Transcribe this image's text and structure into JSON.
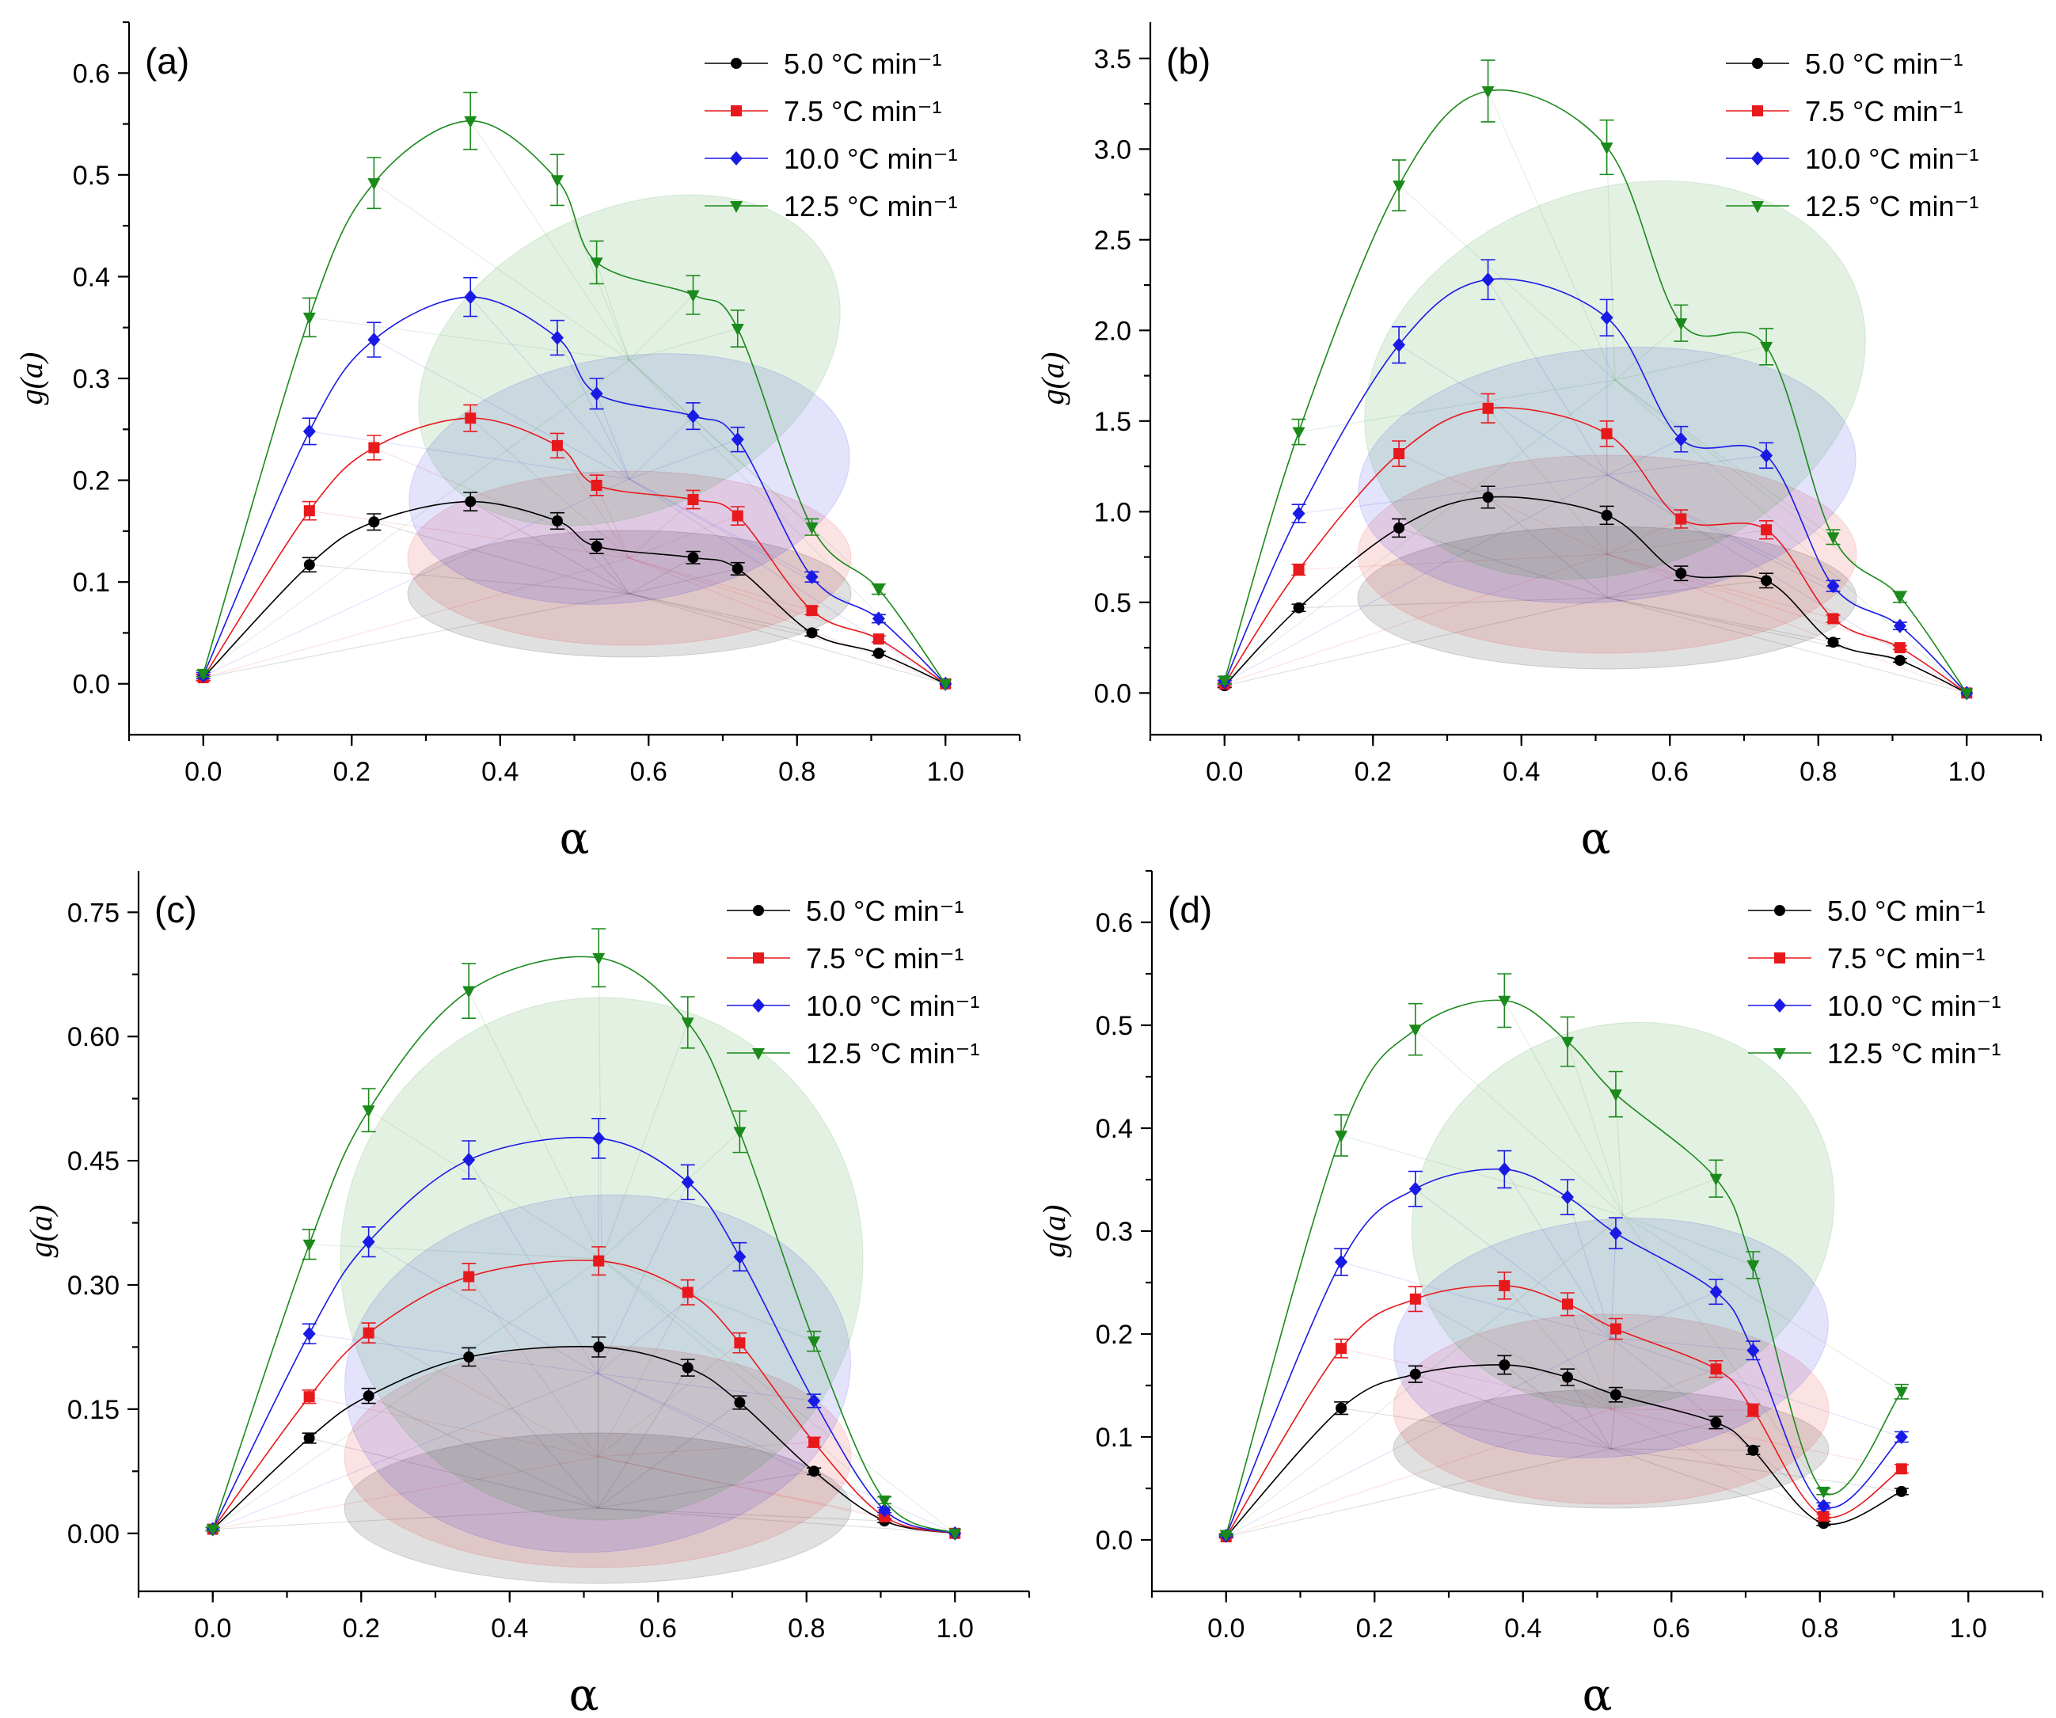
{
  "chart_data": [
    {
      "type": "line",
      "panel_label": "(a)",
      "xlabel": "α",
      "ylabel": "g(a)",
      "xlim": [
        -0.1,
        1.1
      ],
      "ylim": [
        -0.05,
        0.65
      ],
      "x_ticks": [
        "0.0",
        "0.2",
        "0.4",
        "0.6",
        "0.8",
        "1.0"
      ],
      "y_ticks": [
        "0.0",
        "0.1",
        "0.2",
        "0.3",
        "0.4",
        "0.5",
        "0.6"
      ],
      "y_tick_values": [
        0,
        0.1,
        0.2,
        0.3,
        0.4,
        0.5,
        0.6
      ],
      "legend_position": "top-right",
      "series": [
        {
          "name": "5.0 °C min⁻¹",
          "color": "#000000",
          "marker": "circle",
          "x": [
            0,
            0.143,
            0.23,
            0.36,
            0.477,
            0.53,
            0.66,
            0.72,
            0.82,
            0.91,
            1.0
          ],
          "values": [
            0.006,
            0.117,
            0.159,
            0.179,
            0.16,
            0.135,
            0.124,
            0.113,
            0.05,
            0.03,
            0.0
          ],
          "err": [
            0.003,
            0.007,
            0.008,
            0.009,
            0.008,
            0.007,
            0.006,
            0.006,
            0.003,
            0.002,
            0.0
          ]
        },
        {
          "name": "7.5 °C min⁻¹",
          "color": "#e8191c",
          "marker": "square",
          "x": [
            0,
            0.143,
            0.23,
            0.36,
            0.477,
            0.53,
            0.66,
            0.72,
            0.82,
            0.91,
            1.0
          ],
          "values": [
            0.006,
            0.17,
            0.232,
            0.261,
            0.234,
            0.195,
            0.181,
            0.165,
            0.072,
            0.044,
            0.0
          ],
          "err": [
            0.003,
            0.009,
            0.012,
            0.013,
            0.012,
            0.01,
            0.009,
            0.009,
            0.004,
            0.003,
            0.0
          ]
        },
        {
          "name": "10.0 °C min⁻¹",
          "color": "#1a1ae6",
          "marker": "diamond",
          "x": [
            0,
            0.143,
            0.23,
            0.36,
            0.477,
            0.53,
            0.66,
            0.72,
            0.82,
            0.91,
            1.0
          ],
          "values": [
            0.008,
            0.248,
            0.338,
            0.38,
            0.34,
            0.285,
            0.263,
            0.24,
            0.105,
            0.064,
            0.0
          ],
          "err": [
            0.003,
            0.013,
            0.017,
            0.019,
            0.017,
            0.015,
            0.013,
            0.012,
            0.005,
            0.004,
            0.0
          ]
        },
        {
          "name": "12.5 °C min⁻¹",
          "color": "#1a8a1a",
          "marker": "triangle-down",
          "x": [
            0,
            0.143,
            0.23,
            0.36,
            0.477,
            0.53,
            0.66,
            0.72,
            0.82,
            0.91,
            1.0
          ],
          "values": [
            0.01,
            0.36,
            0.492,
            0.553,
            0.495,
            0.414,
            0.382,
            0.349,
            0.154,
            0.093,
            0.0
          ],
          "err": [
            0.003,
            0.019,
            0.025,
            0.028,
            0.025,
            0.021,
            0.019,
            0.018,
            0.008,
            0.005,
            0.0
          ]
        }
      ]
    },
    {
      "type": "line",
      "panel_label": "(b)",
      "xlabel": "α",
      "ylabel": "g(a)",
      "xlim": [
        -0.1,
        1.1
      ],
      "ylim": [
        -0.23,
        3.7
      ],
      "x_ticks": [
        "0.0",
        "0.2",
        "0.4",
        "0.6",
        "0.8",
        "1.0"
      ],
      "y_ticks": [
        "0.0",
        "0.5",
        "1.0",
        "1.5",
        "2.0",
        "2.5",
        "3.0",
        "3.5"
      ],
      "y_tick_values": [
        0,
        0.5,
        1.0,
        1.5,
        2.0,
        2.5,
        3.0,
        3.5
      ],
      "legend_position": "top-right",
      "series": [
        {
          "name": "5.0 °C min⁻¹",
          "color": "#000000",
          "marker": "circle",
          "x": [
            0,
            0.1,
            0.235,
            0.355,
            0.515,
            0.615,
            0.73,
            0.82,
            0.91,
            1.0
          ],
          "values": [
            0.04,
            0.47,
            0.91,
            1.08,
            0.98,
            0.66,
            0.62,
            0.28,
            0.18,
            0.0
          ],
          "err": [
            0.01,
            0.02,
            0.05,
            0.06,
            0.05,
            0.04,
            0.04,
            0.02,
            0.01,
            0.0
          ]
        },
        {
          "name": "7.5 °C min⁻¹",
          "color": "#e8191c",
          "marker": "square",
          "x": [
            0,
            0.1,
            0.235,
            0.355,
            0.515,
            0.615,
            0.73,
            0.82,
            0.91,
            1.0
          ],
          "values": [
            0.05,
            0.68,
            1.32,
            1.57,
            1.43,
            0.96,
            0.9,
            0.41,
            0.25,
            0.0
          ],
          "err": [
            0.01,
            0.03,
            0.07,
            0.08,
            0.07,
            0.05,
            0.05,
            0.02,
            0.01,
            0.0
          ]
        },
        {
          "name": "10.0 °C min⁻¹",
          "color": "#1a1ae6",
          "marker": "diamond",
          "x": [
            0,
            0.1,
            0.235,
            0.355,
            0.515,
            0.615,
            0.73,
            0.82,
            0.91,
            1.0
          ],
          "values": [
            0.06,
            0.99,
            1.92,
            2.28,
            2.07,
            1.4,
            1.31,
            0.59,
            0.37,
            0.0
          ],
          "err": [
            0.01,
            0.05,
            0.1,
            0.11,
            0.1,
            0.07,
            0.07,
            0.03,
            0.02,
            0.0
          ]
        },
        {
          "name": "12.5 °C min⁻¹",
          "color": "#1a8a1a",
          "marker": "triangle-down",
          "x": [
            0,
            0.1,
            0.235,
            0.355,
            0.515,
            0.615,
            0.73,
            0.82,
            0.91,
            1.0
          ],
          "values": [
            0.07,
            1.44,
            2.8,
            3.32,
            3.01,
            2.04,
            1.91,
            0.86,
            0.53,
            0.0
          ],
          "err": [
            0.02,
            0.07,
            0.14,
            0.17,
            0.15,
            0.1,
            0.1,
            0.04,
            0.03,
            0.0
          ]
        }
      ]
    },
    {
      "type": "line",
      "panel_label": "(c)",
      "xlabel": "α",
      "ylabel": "g(a)",
      "xlim": [
        -0.1,
        1.1
      ],
      "ylim": [
        -0.07,
        0.8
      ],
      "x_ticks": [
        "0.0",
        "0.2",
        "0.4",
        "0.6",
        "0.8",
        "1.0"
      ],
      "y_ticks": [
        "0.00",
        "0.15",
        "0.30",
        "0.45",
        "0.60",
        "0.75"
      ],
      "y_tick_values": [
        0,
        0.15,
        0.3,
        0.45,
        0.6,
        0.75
      ],
      "legend_position": "top-right",
      "series": [
        {
          "name": "5.0 °C min⁻¹",
          "color": "#000000",
          "marker": "circle",
          "x": [
            0,
            0.13,
            0.21,
            0.345,
            0.52,
            0.64,
            0.71,
            0.81,
            0.905,
            1.0
          ],
          "values": [
            0.005,
            0.115,
            0.166,
            0.213,
            0.225,
            0.2,
            0.158,
            0.075,
            0.015,
            0.0
          ],
          "err": [
            0.002,
            0.006,
            0.009,
            0.011,
            0.012,
            0.01,
            0.008,
            0.004,
            0.002,
            0.0
          ]
        },
        {
          "name": "7.5 °C min⁻¹",
          "color": "#e8191c",
          "marker": "square",
          "x": [
            0,
            0.13,
            0.21,
            0.345,
            0.52,
            0.64,
            0.71,
            0.81,
            0.905,
            1.0
          ],
          "values": [
            0.005,
            0.165,
            0.242,
            0.31,
            0.329,
            0.291,
            0.23,
            0.11,
            0.02,
            0.0
          ],
          "err": [
            0.002,
            0.008,
            0.012,
            0.016,
            0.017,
            0.015,
            0.012,
            0.006,
            0.002,
            0.0
          ]
        },
        {
          "name": "10.0 °C min⁻¹",
          "color": "#1a1ae6",
          "marker": "diamond",
          "x": [
            0,
            0.13,
            0.21,
            0.345,
            0.52,
            0.64,
            0.71,
            0.81,
            0.905,
            1.0
          ],
          "values": [
            0.005,
            0.241,
            0.352,
            0.451,
            0.477,
            0.424,
            0.334,
            0.16,
            0.028,
            0.0
          ],
          "err": [
            0.002,
            0.012,
            0.018,
            0.023,
            0.024,
            0.021,
            0.017,
            0.008,
            0.003,
            0.0
          ]
        },
        {
          "name": "12.5 °C min⁻¹",
          "color": "#1a8a1a",
          "marker": "triangle-down",
          "x": [
            0,
            0.13,
            0.21,
            0.345,
            0.52,
            0.64,
            0.71,
            0.81,
            0.905,
            1.0
          ],
          "values": [
            0.005,
            0.349,
            0.511,
            0.655,
            0.695,
            0.617,
            0.485,
            0.232,
            0.04,
            0.0
          ],
          "err": [
            0.002,
            0.018,
            0.026,
            0.033,
            0.035,
            0.031,
            0.025,
            0.012,
            0.004,
            0.0
          ]
        }
      ]
    },
    {
      "type": "line",
      "panel_label": "(d)",
      "xlabel": "α",
      "ylabel": "g(a)",
      "xlim": [
        -0.1,
        1.1
      ],
      "ylim": [
        -0.05,
        0.65
      ],
      "x_ticks": [
        "0.0",
        "0.2",
        "0.4",
        "0.6",
        "0.8",
        "1.0"
      ],
      "y_ticks": [
        "0.0",
        "0.1",
        "0.2",
        "0.3",
        "0.4",
        "0.5",
        "0.6"
      ],
      "y_tick_values": [
        0,
        0.1,
        0.2,
        0.3,
        0.4,
        0.5,
        0.6
      ],
      "legend_position": "top-right",
      "series": [
        {
          "name": "5.0 °C min⁻¹",
          "color": "#000000",
          "marker": "circle",
          "x": [
            0,
            0.155,
            0.255,
            0.375,
            0.46,
            0.525,
            0.66,
            0.71,
            0.805,
            0.91
          ],
          "values": [
            0.003,
            0.128,
            0.161,
            0.17,
            0.158,
            0.141,
            0.114,
            0.087,
            0.016,
            0.047
          ],
          "err": [
            0.001,
            0.006,
            0.008,
            0.009,
            0.008,
            0.007,
            0.006,
            0.004,
            0.002,
            0.003
          ]
        },
        {
          "name": "7.5 °C min⁻¹",
          "color": "#e8191c",
          "marker": "square",
          "x": [
            0,
            0.155,
            0.255,
            0.375,
            0.46,
            0.525,
            0.66,
            0.71,
            0.805,
            0.91
          ],
          "values": [
            0.003,
            0.186,
            0.234,
            0.247,
            0.229,
            0.205,
            0.166,
            0.126,
            0.023,
            0.069
          ],
          "err": [
            0.001,
            0.009,
            0.012,
            0.013,
            0.011,
            0.01,
            0.008,
            0.006,
            0.002,
            0.004
          ]
        },
        {
          "name": "10.0 °C min⁻¹",
          "color": "#1a1ae6",
          "marker": "diamond",
          "x": [
            0,
            0.155,
            0.255,
            0.375,
            0.46,
            0.525,
            0.66,
            0.71,
            0.805,
            0.91
          ],
          "values": [
            0.004,
            0.27,
            0.341,
            0.36,
            0.333,
            0.298,
            0.241,
            0.184,
            0.033,
            0.1
          ],
          "err": [
            0.001,
            0.013,
            0.017,
            0.018,
            0.017,
            0.015,
            0.012,
            0.009,
            0.003,
            0.005
          ]
        },
        {
          "name": "12.5 °C min⁻¹",
          "color": "#1a8a1a",
          "marker": "triangle-down",
          "x": [
            0,
            0.155,
            0.255,
            0.375,
            0.46,
            0.525,
            0.66,
            0.71,
            0.805,
            0.91
          ],
          "values": [
            0.005,
            0.393,
            0.496,
            0.524,
            0.484,
            0.433,
            0.351,
            0.267,
            0.047,
            0.144
          ],
          "err": [
            0.001,
            0.02,
            0.025,
            0.026,
            0.024,
            0.022,
            0.018,
            0.013,
            0.003,
            0.007
          ]
        }
      ]
    }
  ]
}
